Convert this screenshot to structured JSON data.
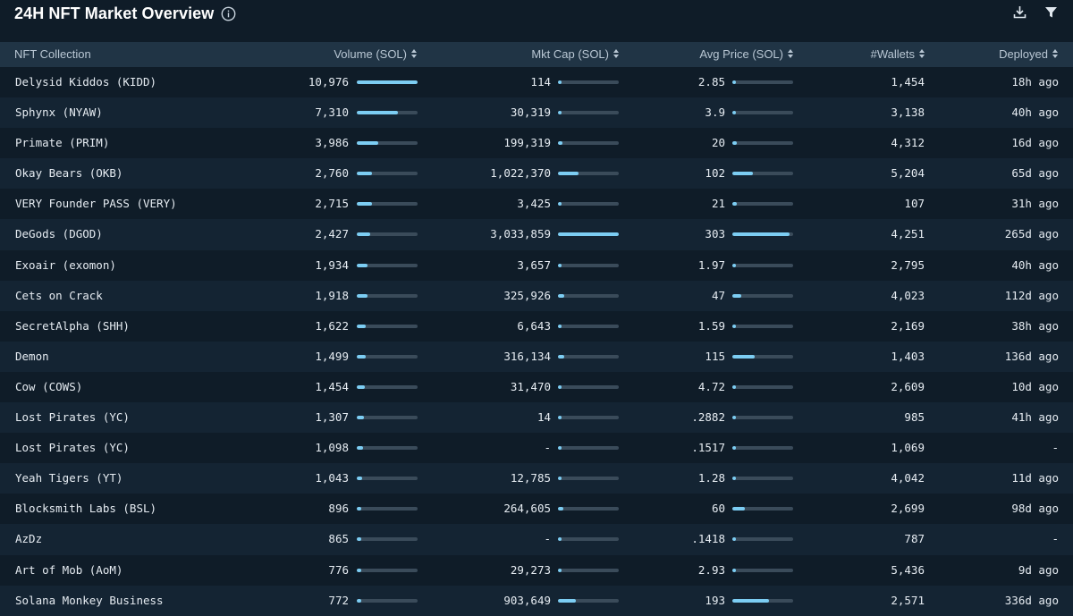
{
  "header": {
    "title": "24H NFT Market Overview",
    "icons": [
      "info-icon",
      "download-icon",
      "filter-icon"
    ]
  },
  "colors": {
    "background": "#0f1c28",
    "row_alt": "#142433",
    "header_row": "#203445",
    "bar_track": "#3a4b5a",
    "bar_fill": "#7ccdf3"
  },
  "columns": {
    "collection": "NFT Collection",
    "volume": "Volume (SOL)",
    "mktcap": "Mkt Cap (SOL)",
    "avgprice": "Avg Price (SOL)",
    "wallets": "#Wallets",
    "deployed": "Deployed"
  },
  "rows": [
    {
      "name": "Delysid Kiddos (KIDD)",
      "volume": "10,976",
      "volume_pct": 100,
      "mktcap": "114",
      "mktcap_pct": 0,
      "avg": "2.85",
      "avg_pct": 1,
      "wallets": "1,454",
      "deployed": "18h ago"
    },
    {
      "name": "Sphynx (NYAW)",
      "volume": "7,310",
      "volume_pct": 67,
      "mktcap": "30,319",
      "mktcap_pct": 1,
      "avg": "3.9",
      "avg_pct": 1,
      "wallets": "3,138",
      "deployed": "40h ago"
    },
    {
      "name": "Primate (PRIM)",
      "volume": "3,986",
      "volume_pct": 36,
      "mktcap": "199,319",
      "mktcap_pct": 7,
      "avg": "20",
      "avg_pct": 7,
      "wallets": "4,312",
      "deployed": "16d ago"
    },
    {
      "name": "Okay Bears (OKB)",
      "volume": "2,760",
      "volume_pct": 25,
      "mktcap": "1,022,370",
      "mktcap_pct": 34,
      "avg": "102",
      "avg_pct": 34,
      "wallets": "5,204",
      "deployed": "65d ago"
    },
    {
      "name": "VERY Founder PASS (VERY)",
      "volume": "2,715",
      "volume_pct": 25,
      "mktcap": "3,425",
      "mktcap_pct": 0,
      "avg": "21",
      "avg_pct": 7,
      "wallets": "107",
      "deployed": "31h ago"
    },
    {
      "name": "DeGods (DGOD)",
      "volume": "2,427",
      "volume_pct": 22,
      "mktcap": "3,033,859",
      "mktcap_pct": 100,
      "avg": "303",
      "avg_pct": 94,
      "wallets": "4,251",
      "deployed": "265d ago"
    },
    {
      "name": "Exoair (exomon)",
      "volume": "1,934",
      "volume_pct": 18,
      "mktcap": "3,657",
      "mktcap_pct": 0,
      "avg": "1.97",
      "avg_pct": 1,
      "wallets": "2,795",
      "deployed": "40h ago"
    },
    {
      "name": "Cets on Crack",
      "volume": "1,918",
      "volume_pct": 17,
      "mktcap": "325,926",
      "mktcap_pct": 11,
      "avg": "47",
      "avg_pct": 15,
      "wallets": "4,023",
      "deployed": "112d ago"
    },
    {
      "name": "SecretAlpha (SHH)",
      "volume": "1,622",
      "volume_pct": 15,
      "mktcap": "6,643",
      "mktcap_pct": 0,
      "avg": "1.59",
      "avg_pct": 1,
      "wallets": "2,169",
      "deployed": "38h ago"
    },
    {
      "name": "Demon",
      "volume": "1,499",
      "volume_pct": 14,
      "mktcap": "316,134",
      "mktcap_pct": 10,
      "avg": "115",
      "avg_pct": 37,
      "wallets": "1,403",
      "deployed": "136d ago"
    },
    {
      "name": "Cow (COWS)",
      "volume": "1,454",
      "volume_pct": 13,
      "mktcap": "31,470",
      "mktcap_pct": 1,
      "avg": "4.72",
      "avg_pct": 2,
      "wallets": "2,609",
      "deployed": "10d ago"
    },
    {
      "name": "Lost Pirates (YC)",
      "volume": "1,307",
      "volume_pct": 12,
      "mktcap": "14",
      "mktcap_pct": 0,
      "avg": ".2882",
      "avg_pct": 0,
      "wallets": "985",
      "deployed": "41h ago"
    },
    {
      "name": "Lost Pirates (YC)",
      "volume": "1,098",
      "volume_pct": 10,
      "mktcap": "-",
      "mktcap_pct": 0,
      "avg": ".1517",
      "avg_pct": 0,
      "wallets": "1,069",
      "deployed": "-"
    },
    {
      "name": "Yeah Tigers (YT)",
      "volume": "1,043",
      "volume_pct": 9,
      "mktcap": "12,785",
      "mktcap_pct": 0,
      "avg": "1.28",
      "avg_pct": 0,
      "wallets": "4,042",
      "deployed": "11d ago"
    },
    {
      "name": "Blocksmith Labs (BSL)",
      "volume": "896",
      "volume_pct": 8,
      "mktcap": "264,605",
      "mktcap_pct": 9,
      "avg": "60",
      "avg_pct": 20,
      "wallets": "2,699",
      "deployed": "98d ago"
    },
    {
      "name": "AzDz",
      "volume": "865",
      "volume_pct": 8,
      "mktcap": "-",
      "mktcap_pct": 0,
      "avg": ".1418",
      "avg_pct": 0,
      "wallets": "787",
      "deployed": "-"
    },
    {
      "name": "Art of Mob (AoM)",
      "volume": "776",
      "volume_pct": 7,
      "mktcap": "29,273",
      "mktcap_pct": 1,
      "avg": "2.93",
      "avg_pct": 1,
      "wallets": "5,436",
      "deployed": "9d ago"
    },
    {
      "name": "Solana Monkey Business",
      "volume": "772",
      "volume_pct": 7,
      "mktcap": "903,649",
      "mktcap_pct": 30,
      "avg": "193",
      "avg_pct": 60,
      "wallets": "2,571",
      "deployed": "336d ago"
    }
  ]
}
